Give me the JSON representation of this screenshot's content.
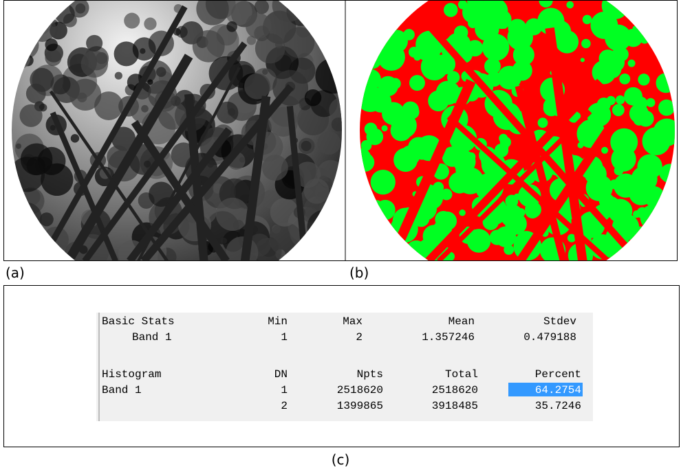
{
  "figure": {
    "panels": [
      {
        "label": "(a)"
      },
      {
        "label": "(b)"
      }
    ],
    "stats": {
      "header": [
        "Basic Stats",
        "Min",
        "Max",
        "Mean",
        "Stdev"
      ],
      "rows": [
        {
          "label": "Band 1",
          "cells": [
            "1",
            "2",
            "1.357246",
            "0.479188"
          ]
        }
      ]
    },
    "histogram": {
      "header": [
        "Histogram",
        "DN",
        "Npts",
        "Total",
        "Percent"
      ],
      "rows": [
        {
          "label": "Band 1",
          "cells": [
            "1",
            "2518620",
            "2518620",
            "64.2754"
          ]
        },
        {
          "cells": [
            "2",
            "1399865",
            "3918485",
            "35.7246"
          ]
        }
      ]
    },
    "caption": "(c)"
  }
}
